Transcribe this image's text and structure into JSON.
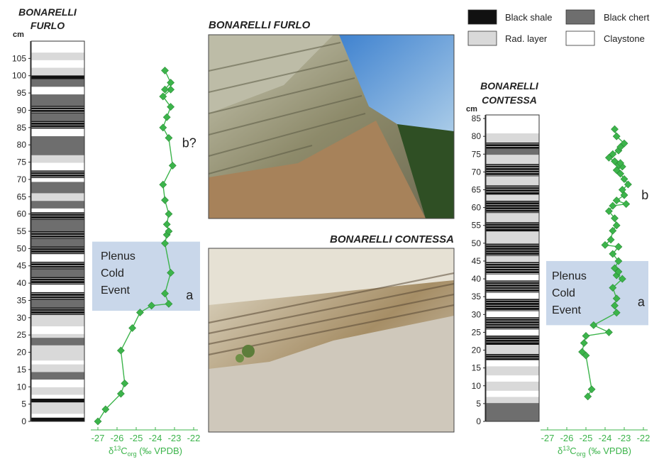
{
  "legend": {
    "items": [
      {
        "label": "Black shale",
        "color": "#111111"
      },
      {
        "label": "Black chert",
        "color": "#6e6e6e"
      },
      {
        "label": "Rad. layer",
        "color": "#d9d9d9"
      },
      {
        "label": "Claystone",
        "color": "#ffffff"
      }
    ]
  },
  "photos": {
    "furlo_title": "BONARELLI FURLO",
    "contessa_title": "BONARELLI CONTESSA"
  },
  "colors": {
    "isotope": "#3cb44b",
    "event_box": "#c9d7ea",
    "axis": "#222222"
  },
  "chart_data": [
    {
      "type": "line",
      "section": "furlo",
      "title": "BONARELLI FURLO",
      "title_lines": [
        "BONARELLI",
        "FURLO"
      ],
      "ylabel": "cm",
      "xlabel_base": "δ",
      "xlabel_sup": "13",
      "xlabel_sub_c": "C",
      "xlabel_sub_org": "org",
      "xlabel_tail": " (‰ VPDB)",
      "xlim": [
        -27,
        -22
      ],
      "xticks": [
        "-27",
        "-26",
        "-25",
        "-24",
        "-23",
        "-22"
      ],
      "ylim": [
        0,
        110
      ],
      "yticks": [
        "0",
        "5",
        "10",
        "15",
        "20",
        "25",
        "30",
        "35",
        "40",
        "45",
        "50",
        "55",
        "60",
        "65",
        "70",
        "75",
        "80",
        "85",
        "90",
        "95",
        "100",
        "105"
      ],
      "event": {
        "label_lines": [
          "Plenus",
          "Cold",
          "Event"
        ],
        "y_range": [
          32,
          52
        ]
      },
      "interval_labels": [
        {
          "text": "b?",
          "x": -22.6,
          "y": 80.5
        },
        {
          "text": "a",
          "x": -22.4,
          "y": 36.5
        }
      ],
      "x": [
        -27.0,
        -26.6,
        -25.8,
        -25.6,
        -25.8,
        -25.2,
        -24.8,
        -24.2,
        -23.3,
        -23.5,
        -23.2,
        -23.5,
        -23.4,
        -23.3,
        -23.4,
        -23.3,
        -23.5,
        -23.6,
        -23.1,
        -23.3,
        -23.6,
        -23.4,
        -23.2,
        -23.6,
        -23.2,
        -23.5,
        -23.2,
        -23.5
      ],
      "y": [
        0,
        3.5,
        8,
        11,
        20.5,
        27,
        31.5,
        33.5,
        34,
        37,
        43,
        51.5,
        54,
        55,
        57,
        60,
        64,
        68.5,
        74,
        82,
        85,
        88,
        91,
        94,
        96,
        96,
        98,
        101.5
      ]
    },
    {
      "type": "line",
      "section": "contessa",
      "title": "BONARELLI CONTESSA",
      "title_lines": [
        "BONARELLI",
        "CONTESSA"
      ],
      "ylabel": "cm",
      "xlabel_base": "δ",
      "xlabel_sup": "13",
      "xlabel_sub_c": "C",
      "xlabel_sub_org": "org",
      "xlabel_tail": " (‰ VPDB)",
      "xlim": [
        -27,
        -22
      ],
      "xticks": [
        "-27",
        "-26",
        "-25",
        "-24",
        "-23",
        "-22"
      ],
      "ylim": [
        0,
        86
      ],
      "yticks": [
        "0",
        "5",
        "10",
        "15",
        "20",
        "25",
        "30",
        "35",
        "40",
        "45",
        "50",
        "55",
        "60",
        "65",
        "70",
        "75",
        "80",
        "85"
      ],
      "event": {
        "label_lines": [
          "Plenus",
          "Cold",
          "Event"
        ],
        "y_range": [
          27,
          45
        ]
      },
      "interval_labels": [
        {
          "text": "b",
          "x": -22.1,
          "y": 63.5
        },
        {
          "text": "a",
          "x": -22.3,
          "y": 33.5
        }
      ],
      "x": [
        -24.9,
        -24.7,
        -25.0,
        -25.2,
        -25.1,
        -25.0,
        -23.8,
        -24.6,
        -23.4,
        -23.5,
        -23.4,
        -23.6,
        -23.1,
        -23.4,
        -23.3,
        -23.5,
        -23.3,
        -23.6,
        -23.3,
        -24.0,
        -23.7,
        -23.6,
        -23.4,
        -23.5,
        -23.8,
        -23.6,
        -23.4,
        -22.9,
        -23.0,
        -23.1,
        -22.8,
        -23.0,
        -23.2,
        -23.4,
        -23.1,
        -23.2,
        -23.5,
        -23.8,
        -23.6,
        -23.3,
        -23.2,
        -23.0,
        -23.4,
        -23.5,
        -23.3
      ],
      "y": [
        7,
        9,
        18.5,
        19.5,
        22,
        24,
        25,
        27,
        30.5,
        32.5,
        34.5,
        37.5,
        40,
        41,
        42,
        43,
        45,
        47,
        49,
        49.5,
        51,
        53.5,
        55,
        57,
        59,
        60.5,
        62,
        61,
        63.5,
        65,
        66.5,
        68,
        69.5,
        70.5,
        71.5,
        72.5,
        73,
        74,
        75,
        76,
        77,
        78,
        80,
        82,
        72
      ]
    }
  ]
}
